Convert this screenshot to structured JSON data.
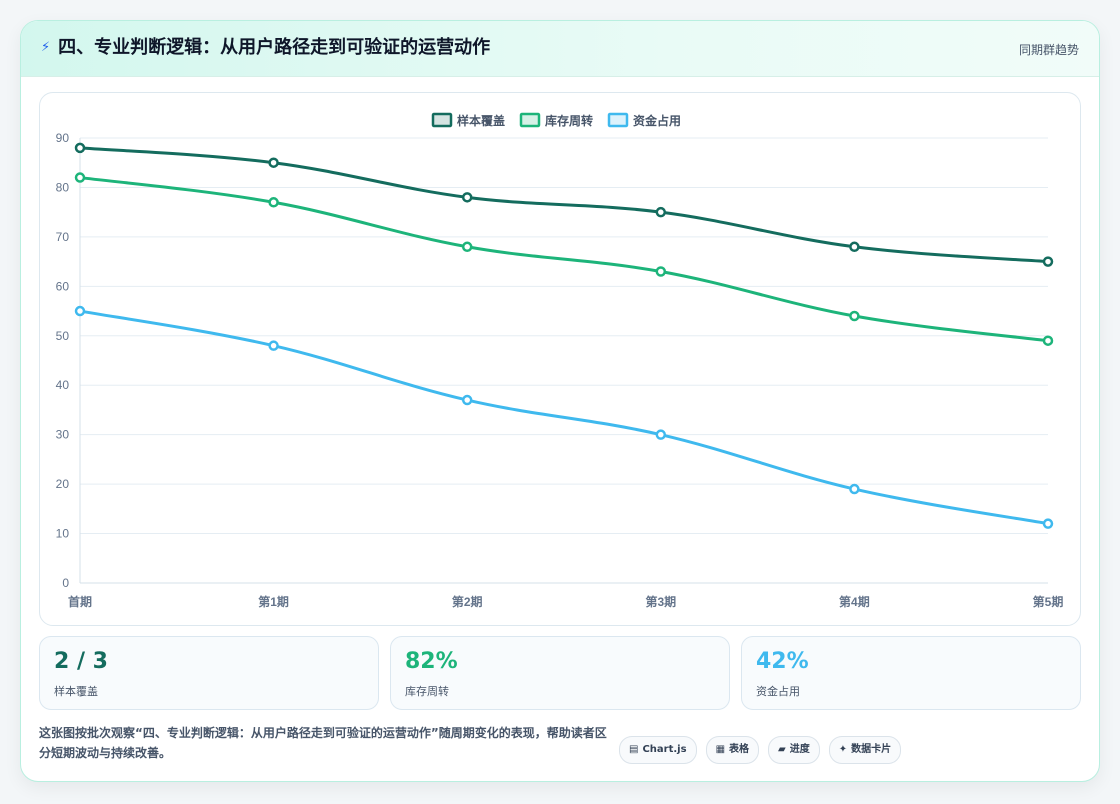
{
  "header": {
    "title": "四、专业判断逻辑：从用户路径走到可验证的运营动作",
    "subtitle": "同期群趋势",
    "title_icon": "lightning-icon"
  },
  "chart_data": {
    "type": "line",
    "categories": [
      "首期",
      "第1期",
      "第2期",
      "第3期",
      "第4期",
      "第5期"
    ],
    "series": [
      {
        "name": "样本覆盖",
        "values": [
          88,
          85,
          78,
          75,
          68,
          65
        ],
        "color": "#146c5e"
      },
      {
        "name": "库存周转",
        "values": [
          82,
          77,
          68,
          63,
          54,
          49
        ],
        "color": "#1db47a"
      },
      {
        "name": "资金占用",
        "values": [
          55,
          48,
          37,
          30,
          19,
          12
        ],
        "color": "#3fb9ee"
      }
    ],
    "ylim": [
      0,
      90
    ],
    "yticks": [
      "0",
      "10",
      "20",
      "30",
      "40",
      "50",
      "60",
      "70",
      "80",
      "90"
    ],
    "legend": "top-center",
    "grid": true
  },
  "stats": [
    {
      "value": "2 / 3",
      "label": "样本覆盖",
      "color": "#146c5e"
    },
    {
      "value": "82%",
      "label": "库存周转",
      "color": "#1db47a"
    },
    {
      "value": "42%",
      "label": "资金占用",
      "color": "#3fb9ee"
    }
  ],
  "footer": {
    "description": "这张图按批次观察“四、专业判断逻辑：从用户路径走到可验证的运营动作”随周期变化的表现，帮助读者区分短期波动与持续改善。",
    "tags": [
      {
        "icon": "▤",
        "label": "Chart.js"
      },
      {
        "icon": "▦",
        "label": "表格"
      },
      {
        "icon": "▰",
        "label": "进度"
      },
      {
        "icon": "✦",
        "label": "数据卡片"
      }
    ]
  }
}
